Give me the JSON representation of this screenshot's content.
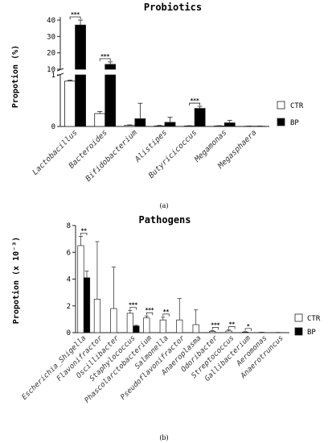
{
  "chart_data": [
    {
      "type": "bar",
      "title": "Probiotics",
      "ylabel": "Propotion (%)",
      "panel_label": "(a)",
      "broken_axis": true,
      "ylim_lower": [
        0,
        1
      ],
      "ylim_upper": [
        10,
        40
      ],
      "yticks_lower": [
        "0",
        "1"
      ],
      "yticks_upper": [
        "10",
        "20",
        "30",
        "40"
      ],
      "categories": [
        "Lactobacillus",
        "Bacteroides",
        "Bifidobacterium",
        "Alistipes",
        "Butyricicoccus",
        "Megamonas",
        "Megasphaera"
      ],
      "series": [
        {
          "name": "CTR",
          "color": "#ffffff",
          "values": [
            0.88,
            0.25,
            0.02,
            0.01,
            0.01,
            0.01,
            0.005
          ],
          "errors": [
            0.02,
            0.04,
            0.01,
            0.01,
            0.005,
            0.005,
            0.003
          ]
        },
        {
          "name": "BP",
          "color": "#000000",
          "values": [
            37,
            13,
            0.15,
            0.08,
            0.35,
            0.07,
            0.005
          ],
          "errors": [
            3,
            1.5,
            0.3,
            0.1,
            0.04,
            0.05,
            0.003
          ]
        }
      ],
      "significance": [
        "***",
        "***",
        "",
        "",
        "***",
        "",
        ""
      ],
      "legend_position": "right"
    },
    {
      "type": "bar",
      "title": "Pathogens",
      "ylabel": "Propotion (x 10⁻³)",
      "panel_label": "(b)",
      "ylim": [
        0,
        8
      ],
      "yticks": [
        "0",
        "2",
        "4",
        "6",
        "8"
      ],
      "categories": [
        "Escherichia_Shigella",
        "Flavonifractor",
        "Oscillibacter",
        "Staphylococcus",
        "Phascolarctobacterium",
        "Salmonella",
        "Pseudoflavonifractor",
        "Anaeroplasma",
        "Odoribacter",
        "Streptococcus",
        "Gallibacterium",
        "Aeromonas",
        "Anaerotruncus"
      ],
      "series": [
        {
          "name": "CTR",
          "color": "#ffffff",
          "values": [
            6.5,
            2.5,
            1.8,
            1.45,
            1.1,
            0.95,
            0.95,
            0.6,
            0.1,
            0.12,
            0.04,
            0.02,
            0.01
          ],
          "errors": [
            0.7,
            4.3,
            3.1,
            0.2,
            0.15,
            0.2,
            1.6,
            1.1,
            0.05,
            0.1,
            0.03,
            0.01,
            0.01
          ]
        },
        {
          "name": "BP",
          "color": "#000000",
          "values": [
            4.1,
            0,
            0,
            0.5,
            0,
            0,
            0,
            0,
            0,
            0,
            0,
            0,
            0
          ],
          "errors": [
            0.5,
            0,
            0,
            0.05,
            0,
            0,
            0,
            0,
            0,
            0,
            0,
            0,
            0
          ]
        }
      ],
      "significance": [
        "**",
        "",
        "",
        "***",
        "***",
        "**",
        "",
        "",
        "***",
        "**",
        "*",
        "",
        ""
      ],
      "legend_position": "right"
    }
  ]
}
